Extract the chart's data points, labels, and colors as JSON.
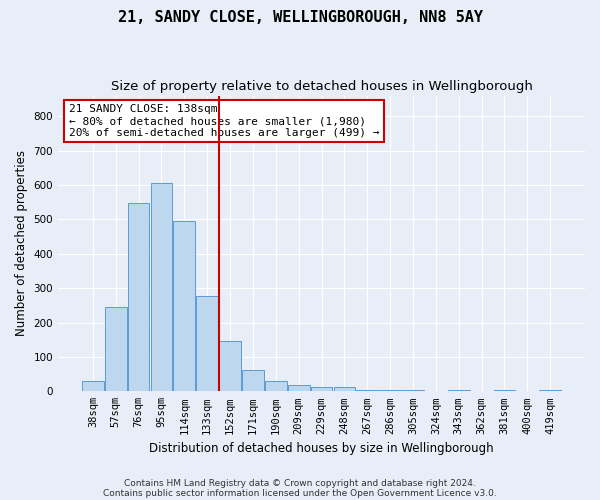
{
  "title": "21, SANDY CLOSE, WELLINGBOROUGH, NN8 5AY",
  "subtitle": "Size of property relative to detached houses in Wellingborough",
  "xlabel": "Distribution of detached houses by size in Wellingborough",
  "ylabel": "Number of detached properties",
  "footnote1": "Contains HM Land Registry data © Crown copyright and database right 2024.",
  "footnote2": "Contains public sector information licensed under the Open Government Licence v3.0.",
  "categories": [
    "38sqm",
    "57sqm",
    "76sqm",
    "95sqm",
    "114sqm",
    "133sqm",
    "152sqm",
    "171sqm",
    "190sqm",
    "209sqm",
    "229sqm",
    "248sqm",
    "267sqm",
    "286sqm",
    "305sqm",
    "324sqm",
    "343sqm",
    "362sqm",
    "381sqm",
    "400sqm",
    "419sqm"
  ],
  "values": [
    30,
    245,
    548,
    605,
    495,
    278,
    145,
    62,
    30,
    18,
    13,
    12,
    5,
    5,
    5,
    0,
    5,
    0,
    5,
    0,
    5
  ],
  "bar_color": "#bdd7ee",
  "bar_edge_color": "#5b9bd5",
  "vline_color": "#cc0000",
  "vline_x": 5.5,
  "annotation_text": "21 SANDY CLOSE: 138sqm\n← 80% of detached houses are smaller (1,980)\n20% of semi-detached houses are larger (499) →",
  "annotation_box_color": "white",
  "annotation_box_edge_color": "#cc0000",
  "ylim": [
    0,
    860
  ],
  "yticks": [
    0,
    100,
    200,
    300,
    400,
    500,
    600,
    700,
    800
  ],
  "background_color": "#e8eef7",
  "grid_color": "#ffffff",
  "title_fontsize": 11,
  "subtitle_fontsize": 9.5,
  "axis_label_fontsize": 8.5,
  "tick_fontsize": 7.5,
  "annotation_fontsize": 8,
  "footnote_fontsize": 6.5
}
